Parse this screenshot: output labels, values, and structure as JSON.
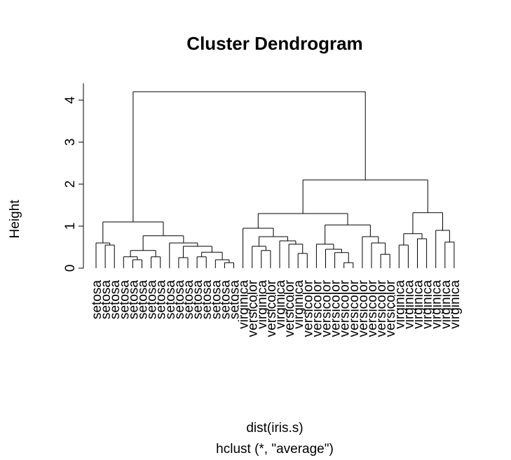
{
  "chart_data": {
    "type": "dendrogram",
    "title": "Cluster Dendrogram",
    "x_label": "dist(iris.s)",
    "subtitle": "hclust (*, \"average\")",
    "y_label": "Height",
    "ylim": [
      0,
      4.4
    ],
    "yticks": [
      0,
      1,
      2,
      3,
      4
    ],
    "color": "#000000",
    "tree": {
      "height": 4.2,
      "children": [
        {
          "height": 1.1,
          "children": [
            {
              "height": 0.6,
              "children": [
                {
                  "label": "setosa"
                },
                {
                  "height": 0.55,
                  "children": [
                    {
                      "label": "setosa"
                    },
                    {
                      "label": "setosa"
                    }
                  ]
                }
              ]
            },
            {
              "height": 0.77,
              "children": [
                {
                  "height": 0.42,
                  "children": [
                    {
                      "height": 0.27,
                      "children": [
                        {
                          "label": "setosa"
                        },
                        {
                          "height": 0.2,
                          "children": [
                            {
                              "label": "setosa"
                            },
                            {
                              "label": "setosa"
                            }
                          ]
                        }
                      ]
                    },
                    {
                      "height": 0.27,
                      "children": [
                        {
                          "label": "setosa"
                        },
                        {
                          "label": "setosa"
                        }
                      ]
                    }
                  ]
                },
                {
                  "height": 0.6,
                  "children": [
                    {
                      "label": "setosa"
                    },
                    {
                      "height": 0.52,
                      "children": [
                        {
                          "height": 0.25,
                          "children": [
                            {
                              "label": "setosa"
                            },
                            {
                              "label": "setosa"
                            }
                          ]
                        },
                        {
                          "height": 0.38,
                          "children": [
                            {
                              "height": 0.27,
                              "children": [
                                {
                                  "label": "setosa"
                                },
                                {
                                  "label": "setosa"
                                }
                              ]
                            },
                            {
                              "height": 0.2,
                              "children": [
                                {
                                  "label": "setosa"
                                },
                                {
                                  "height": 0.13,
                                  "children": [
                                    {
                                      "label": "setosa"
                                    },
                                    {
                                      "label": "setosa"
                                    }
                                  ]
                                }
                              ]
                            }
                          ]
                        }
                      ]
                    }
                  ]
                }
              ]
            }
          ]
        },
        {
          "height": 2.1,
          "children": [
            {
              "height": 1.3,
              "children": [
                {
                  "height": 0.95,
                  "children": [
                    {
                      "label": "virginica"
                    },
                    {
                      "height": 0.75,
                      "children": [
                        {
                          "height": 0.52,
                          "children": [
                            {
                              "label": "versicolor"
                            },
                            {
                              "height": 0.42,
                              "children": [
                                {
                                  "label": "virginica"
                                },
                                {
                                  "label": "versicolor"
                                }
                              ]
                            }
                          ]
                        },
                        {
                          "height": 0.65,
                          "children": [
                            {
                              "label": "virginica"
                            },
                            {
                              "height": 0.57,
                              "children": [
                                {
                                  "label": "versicolor"
                                },
                                {
                                  "height": 0.35,
                                  "children": [
                                    {
                                      "label": "virginica"
                                    },
                                    {
                                      "label": "versicolor"
                                    }
                                  ]
                                }
                              ]
                            }
                          ]
                        }
                      ]
                    }
                  ]
                },
                {
                  "height": 1.03,
                  "children": [
                    {
                      "height": 0.57,
                      "children": [
                        {
                          "label": "versicolor"
                        },
                        {
                          "height": 0.45,
                          "children": [
                            {
                              "label": "versicolor"
                            },
                            {
                              "height": 0.37,
                              "children": [
                                {
                                  "label": "versicolor"
                                },
                                {
                                  "height": 0.13,
                                  "children": [
                                    {
                                      "label": "versicolor"
                                    },
                                    {
                                      "label": "versicolor"
                                    }
                                  ]
                                }
                              ]
                            }
                          ]
                        }
                      ]
                    },
                    {
                      "height": 0.75,
                      "children": [
                        {
                          "label": "versicolor"
                        },
                        {
                          "height": 0.6,
                          "children": [
                            {
                              "label": "versicolor"
                            },
                            {
                              "height": 0.33,
                              "children": [
                                {
                                  "label": "versicolor"
                                },
                                {
                                  "label": "versicolor"
                                }
                              ]
                            }
                          ]
                        }
                      ]
                    }
                  ]
                }
              ]
            },
            {
              "height": 1.32,
              "children": [
                {
                  "height": 0.82,
                  "children": [
                    {
                      "height": 0.55,
                      "children": [
                        {
                          "label": "virginica"
                        },
                        {
                          "label": "virginica"
                        }
                      ]
                    },
                    {
                      "height": 0.7,
                      "children": [
                        {
                          "label": "virginica"
                        },
                        {
                          "label": "virginica"
                        }
                      ]
                    }
                  ]
                },
                {
                  "height": 0.9,
                  "children": [
                    {
                      "label": "virginica"
                    },
                    {
                      "height": 0.62,
                      "children": [
                        {
                          "label": "virginica"
                        },
                        {
                          "label": "virginica"
                        }
                      ]
                    }
                  ]
                }
              ]
            }
          ]
        }
      ]
    }
  }
}
